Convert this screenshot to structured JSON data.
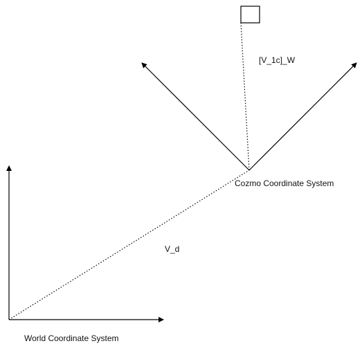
{
  "labels": {
    "vector_1c_w": "[V_1c]_W",
    "cozmo_frame": "Cozmo Coordinate System",
    "vector_d": "V_d",
    "world_frame": "World Coordinate System"
  },
  "colors": {
    "stroke": "#000000",
    "text": "#111111",
    "background": "#ffffff"
  }
}
